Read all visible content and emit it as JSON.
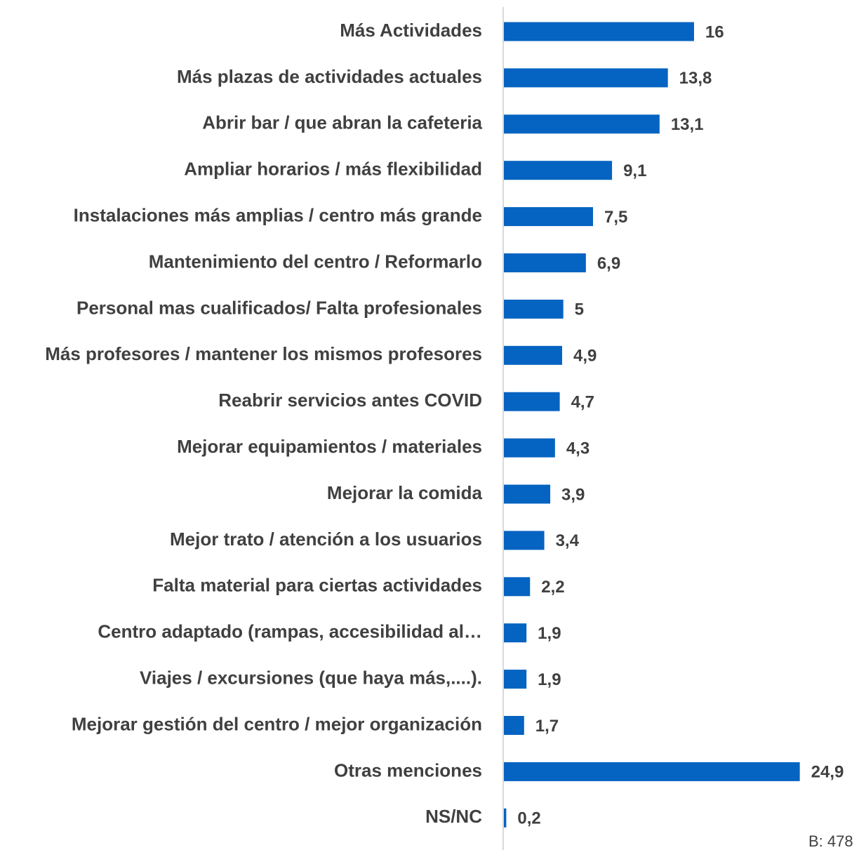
{
  "chart_data": {
    "type": "bar",
    "orientation": "horizontal",
    "categories": [
      "Más Actividades",
      "Más plazas de actividades actuales",
      "Abrir bar / que abran la cafeteria",
      "Ampliar horarios / más flexibilidad",
      "Instalaciones más amplias / centro más grande",
      "Mantenimiento del centro / Reformarlo",
      "Personal mas cualificados/ Falta profesionales",
      "Más profesores / mantener los mismos profesores",
      "Reabrir servicios antes COVID",
      "Mejorar equipamientos / materiales",
      "Mejorar la comida",
      "Mejor trato / atención a los usuarios",
      "Falta material para ciertas actividades",
      "Centro adaptado (rampas, accesibilidad al…",
      "Viajes / excursiones (que haya más,....).",
      "Mejorar gestión del centro / mejor organización",
      "Otras menciones",
      "NS/NC"
    ],
    "values": [
      16,
      13.8,
      13.1,
      9.1,
      7.5,
      6.9,
      5,
      4.9,
      4.7,
      4.3,
      3.9,
      3.4,
      2.2,
      1.9,
      1.9,
      1.7,
      24.9,
      0.2
    ],
    "value_labels": [
      "16",
      "13,8",
      "13,1",
      "9,1",
      "7,5",
      "6,9",
      "5",
      "4,9",
      "4,7",
      "4,3",
      "3,9",
      "3,4",
      "2,2",
      "1,9",
      "1,9",
      "1,7",
      "24,9",
      "0,2"
    ],
    "color": "#0563c1",
    "xlim": [
      0,
      30
    ],
    "note": "B: 478"
  }
}
